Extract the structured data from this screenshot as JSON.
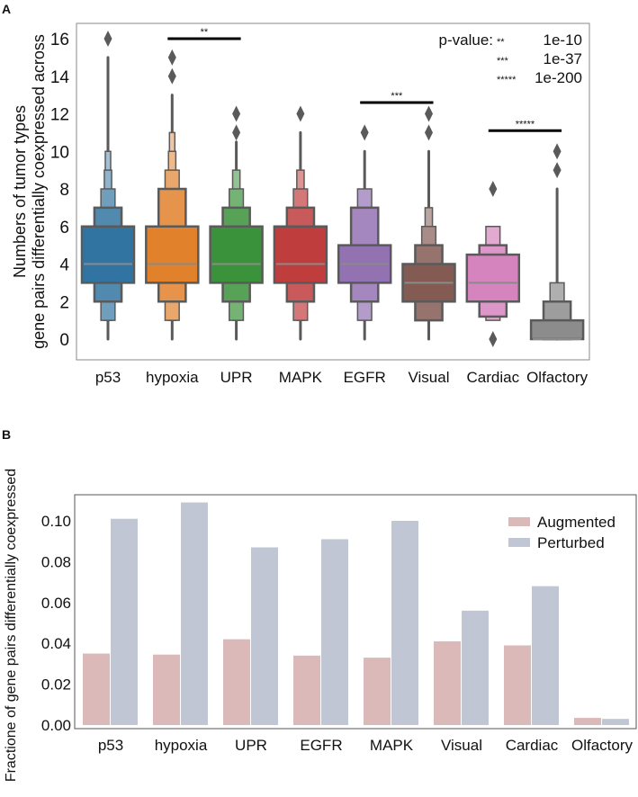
{
  "chart_data": [
    {
      "panel_label": "A",
      "type": "boxen",
      "ylabel_line1": "Numbers of tumor types",
      "ylabel_line2": "gene pairs differentially coexpressed across",
      "ylim": [
        -1.2,
        16.8
      ],
      "yticks": [
        0,
        2,
        4,
        6,
        8,
        10,
        12,
        14,
        16
      ],
      "grid": false,
      "categories": [
        "p53",
        "hypoxia",
        "UPR",
        "MAPK",
        "EGFR",
        "Visual",
        "Cardiac",
        "Olfactory"
      ],
      "colors": [
        "#3274a1",
        "#e1812c",
        "#3a923a",
        "#c03d3e",
        "#9372b2",
        "#845b53",
        "#d684bd",
        "#8c8c8c"
      ],
      "series": [
        {
          "median": 4,
          "levels": [
            [
              3,
              6
            ],
            [
              2,
              7
            ],
            [
              1,
              8
            ],
            [
              1,
              9
            ],
            [
              1,
              10
            ]
          ],
          "range": [
            0,
            15
          ],
          "outliers": [
            16
          ]
        },
        {
          "median": 4,
          "levels": [
            [
              3,
              6
            ],
            [
              2,
              8
            ],
            [
              1,
              9
            ],
            [
              1,
              10
            ],
            [
              1,
              11
            ]
          ],
          "range": [
            0,
            13
          ],
          "outliers": [
            14,
            15
          ]
        },
        {
          "median": 4,
          "levels": [
            [
              3,
              6
            ],
            [
              2,
              7
            ],
            [
              1,
              8
            ],
            [
              1,
              9
            ]
          ],
          "range": [
            0,
            10.5
          ],
          "outliers": [
            11,
            12
          ]
        },
        {
          "median": 4,
          "levels": [
            [
              3,
              6
            ],
            [
              2,
              7
            ],
            [
              1,
              8
            ],
            [
              1,
              9
            ]
          ],
          "range": [
            0,
            11
          ],
          "outliers": [
            12
          ]
        },
        {
          "median": 4,
          "levels": [
            [
              3,
              5
            ],
            [
              2,
              7
            ],
            [
              1,
              8
            ]
          ],
          "range": [
            0,
            10
          ],
          "outliers": [
            11
          ]
        },
        {
          "median": 3,
          "levels": [
            [
              2,
              4
            ],
            [
              1,
              5
            ],
            [
              1,
              6
            ],
            [
              1,
              7
            ]
          ],
          "range": [
            0,
            10
          ],
          "outliers": [
            11,
            12
          ]
        },
        {
          "median": 3,
          "levels": [
            [
              2,
              4.5
            ],
            [
              1.2,
              5
            ],
            [
              1,
              6
            ]
          ],
          "range": null,
          "outliers": [
            0,
            8
          ]
        },
        {
          "median": 0,
          "levels": [
            [
              0,
              1
            ],
            [
              0,
              2
            ],
            [
              0,
              3
            ]
          ],
          "range": [
            0,
            8
          ],
          "outliers": [
            9,
            10
          ]
        }
      ],
      "significance": [
        {
          "from": "hypoxia",
          "to": "UPR",
          "y": 16,
          "label": "**"
        },
        {
          "from": "EGFR",
          "to": "Visual",
          "y": 12.6,
          "label": "***"
        },
        {
          "from": "Cardiac",
          "to": "Olfactory",
          "y": 11.1,
          "label": "*****"
        }
      ],
      "pvalue_legend": {
        "title": "p-value:",
        "entries": [
          {
            "stars": "**",
            "value": "1e-10"
          },
          {
            "stars": "***",
            "value": "1e-37"
          },
          {
            "stars": "*****",
            "value": "1e-200"
          }
        ]
      }
    },
    {
      "panel_label": "B",
      "type": "bar",
      "ylabel": "Fractione of gene pairs differentially coexpressed",
      "ylim": [
        0,
        0.116
      ],
      "yticks": [
        "0.00",
        "0.02",
        "0.04",
        "0.06",
        "0.08",
        "0.10"
      ],
      "grid": false,
      "legend_position": "top-right",
      "categories": [
        "p53",
        "hypoxia",
        "UPR",
        "EGFR",
        "MAPK",
        "Visual",
        "Cardiac",
        "Olfactory"
      ],
      "series": [
        {
          "name": "Augmented",
          "color": "#dbb9b8",
          "values": [
            0.035,
            0.0345,
            0.042,
            0.034,
            0.033,
            0.041,
            0.039,
            0.0035
          ]
        },
        {
          "name": "Perturbed",
          "color": "#c0c6d4",
          "values": [
            0.101,
            0.109,
            0.087,
            0.091,
            0.1,
            0.056,
            0.068,
            0.003
          ]
        }
      ]
    }
  ]
}
